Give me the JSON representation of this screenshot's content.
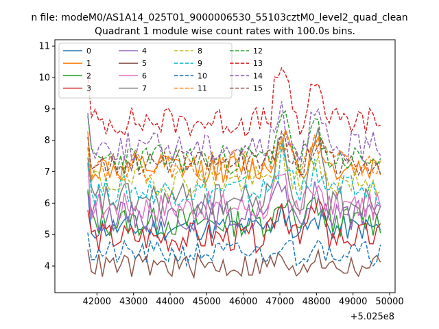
{
  "chart_data": {
    "type": "line",
    "suptitle": "n file: modeM0/AS1A14_025T01_9000006530_55103cztM0_level2_quad_clean",
    "title": "Quadrant 1 module wise count rates with 100.0s bins.",
    "xlabel": "",
    "ylabel": "",
    "x_offset_label": "+5.025e8",
    "xlim": [
      40850,
      50150
    ],
    "ylim": [
      3.15,
      11.2
    ],
    "xticks": [
      42000,
      43000,
      44000,
      45000,
      46000,
      47000,
      48000,
      49000,
      50000
    ],
    "xtick_labels": [
      "42000",
      "43000",
      "44000",
      "45000",
      "46000",
      "47000",
      "48000",
      "49000",
      "50000"
    ],
    "yticks": [
      4,
      5,
      6,
      7,
      8,
      9,
      10,
      11
    ],
    "ytick_labels": [
      "4",
      "5",
      "6",
      "7",
      "8",
      "9",
      "10",
      "11"
    ],
    "x_start": 41750,
    "x_step": 100,
    "num_points": 81,
    "series": [
      {
        "name": "0",
        "color": "#1f77b4",
        "dash": "solid",
        "base": 5.2,
        "amp": 0.25,
        "spike": 0.5,
        "seed": 11
      },
      {
        "name": "1",
        "color": "#ff7f0e",
        "dash": "solid",
        "base": 7.1,
        "amp": 0.3,
        "spike": 1.4,
        "seed": 12
      },
      {
        "name": "2",
        "color": "#2ca02c",
        "dash": "solid",
        "base": 5.4,
        "amp": 0.3,
        "spike": 0.8,
        "seed": 13
      },
      {
        "name": "3",
        "color": "#d62728",
        "dash": "solid",
        "base": 4.9,
        "amp": 0.3,
        "spike": 1.5,
        "seed": 14
      },
      {
        "name": "4",
        "color": "#9467bd",
        "dash": "solid",
        "base": 5.6,
        "amp": 0.3,
        "spike": 1.2,
        "seed": 15
      },
      {
        "name": "5",
        "color": "#8c564b",
        "dash": "solid",
        "base": 4.0,
        "amp": 0.25,
        "spike": 0.3,
        "seed": 16
      },
      {
        "name": "6",
        "color": "#e377c2",
        "dash": "solid",
        "base": 5.9,
        "amp": 0.3,
        "spike": 1.0,
        "seed": 17
      },
      {
        "name": "7",
        "color": "#7f7f7f",
        "dash": "solid",
        "base": 6.1,
        "amp": 0.35,
        "spike": 2.3,
        "seed": 18
      },
      {
        "name": "8",
        "color": "#bcbd22",
        "dash": "dashed",
        "base": 6.7,
        "amp": 0.3,
        "spike": 1.0,
        "seed": 19
      },
      {
        "name": "9",
        "color": "#17becf",
        "dash": "dashed",
        "base": 6.4,
        "amp": 0.3,
        "spike": 1.2,
        "seed": 20
      },
      {
        "name": "10",
        "color": "#1f77b4",
        "dash": "dashed",
        "base": 4.4,
        "amp": 0.25,
        "spike": 0.6,
        "seed": 21
      },
      {
        "name": "11",
        "color": "#ff7f0e",
        "dash": "dashed",
        "base": 7.2,
        "amp": 0.3,
        "spike": 1.1,
        "seed": 22
      },
      {
        "name": "12",
        "color": "#2ca02c",
        "dash": "dashed",
        "base": 7.4,
        "amp": 0.3,
        "spike": 1.7,
        "seed": 23
      },
      {
        "name": "13",
        "color": "#d62728",
        "dash": "dashed",
        "base": 8.6,
        "amp": 0.3,
        "spike": 2.2,
        "seed": 24
      },
      {
        "name": "14",
        "color": "#9467bd",
        "dash": "dashed",
        "base": 7.8,
        "amp": 0.3,
        "spike": 1.3,
        "seed": 25
      },
      {
        "name": "15",
        "color": "#8c564b",
        "dash": "dashed",
        "base": 7.3,
        "amp": 0.25,
        "spike": 0.9,
        "seed": 26
      }
    ],
    "spikes": [
      {
        "x": 47050,
        "scale": 1.0
      },
      {
        "x": 48000,
        "scale": 0.85
      }
    ],
    "legend": {
      "location": "upper-left",
      "columns": 4
    }
  }
}
